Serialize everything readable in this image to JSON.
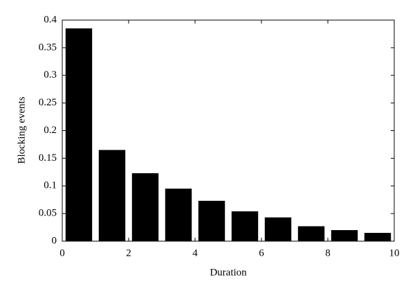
{
  "chart_data": {
    "type": "bar",
    "xlabel": "Duration",
    "ylabel": "Blocking events",
    "x": [
      0.5,
      1.5,
      2.5,
      3.5,
      4.5,
      5.5,
      6.5,
      7.5,
      8.5,
      9.5
    ],
    "values": [
      0.385,
      0.165,
      0.123,
      0.095,
      0.073,
      0.054,
      0.043,
      0.027,
      0.02,
      0.015
    ],
    "color": "#000000",
    "xlim": [
      0,
      10
    ],
    "xticks": [
      0,
      2,
      4,
      6,
      8,
      10
    ],
    "ylim": [
      0,
      0.4
    ],
    "yticks": [
      0,
      0.05,
      0.1,
      0.15,
      0.2,
      0.25,
      0.3,
      0.35,
      0.4
    ],
    "grid": false
  }
}
